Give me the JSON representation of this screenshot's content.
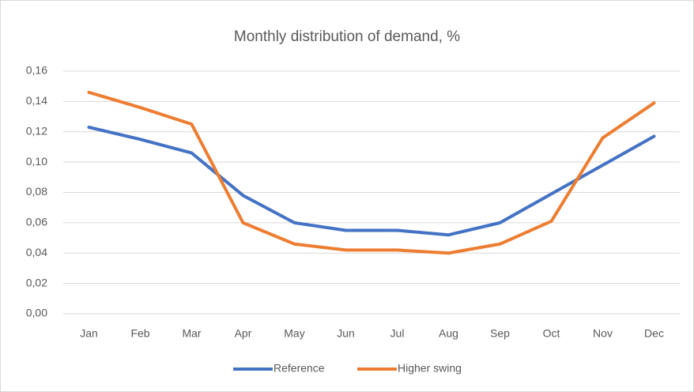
{
  "chart_data": {
    "type": "line",
    "title": "Monthly distribution of demand, %",
    "categories": [
      "Jan",
      "Feb",
      "Mar",
      "Apr",
      "May",
      "Jun",
      "Jul",
      "Aug",
      "Sep",
      "Oct",
      "Nov",
      "Dec"
    ],
    "series": [
      {
        "name": "Reference",
        "color": "#4472c4",
        "values": [
          0.123,
          0.115,
          0.106,
          0.078,
          0.06,
          0.055,
          0.055,
          0.052,
          0.06,
          0.079,
          0.098,
          0.117
        ]
      },
      {
        "name": "Higher swing",
        "color": "#ed7d31",
        "values": [
          0.146,
          0.136,
          0.125,
          0.06,
          0.046,
          0.042,
          0.042,
          0.04,
          0.046,
          0.061,
          0.116,
          0.139
        ]
      }
    ],
    "ylim": [
      0,
      0.16
    ],
    "yticks": [
      {
        "value": 0,
        "label": "0,00"
      },
      {
        "value": 0.02,
        "label": "0,02"
      },
      {
        "value": 0.04,
        "label": "0,04"
      },
      {
        "value": 0.06,
        "label": "0,06"
      },
      {
        "value": 0.08,
        "label": "0,08"
      },
      {
        "value": 0.1,
        "label": "0,10"
      },
      {
        "value": 0.12,
        "label": "0,12"
      },
      {
        "value": 0.14,
        "label": "0,14"
      },
      {
        "value": 0.16,
        "label": "0,16"
      }
    ],
    "grid": true,
    "legend": "bottom"
  }
}
